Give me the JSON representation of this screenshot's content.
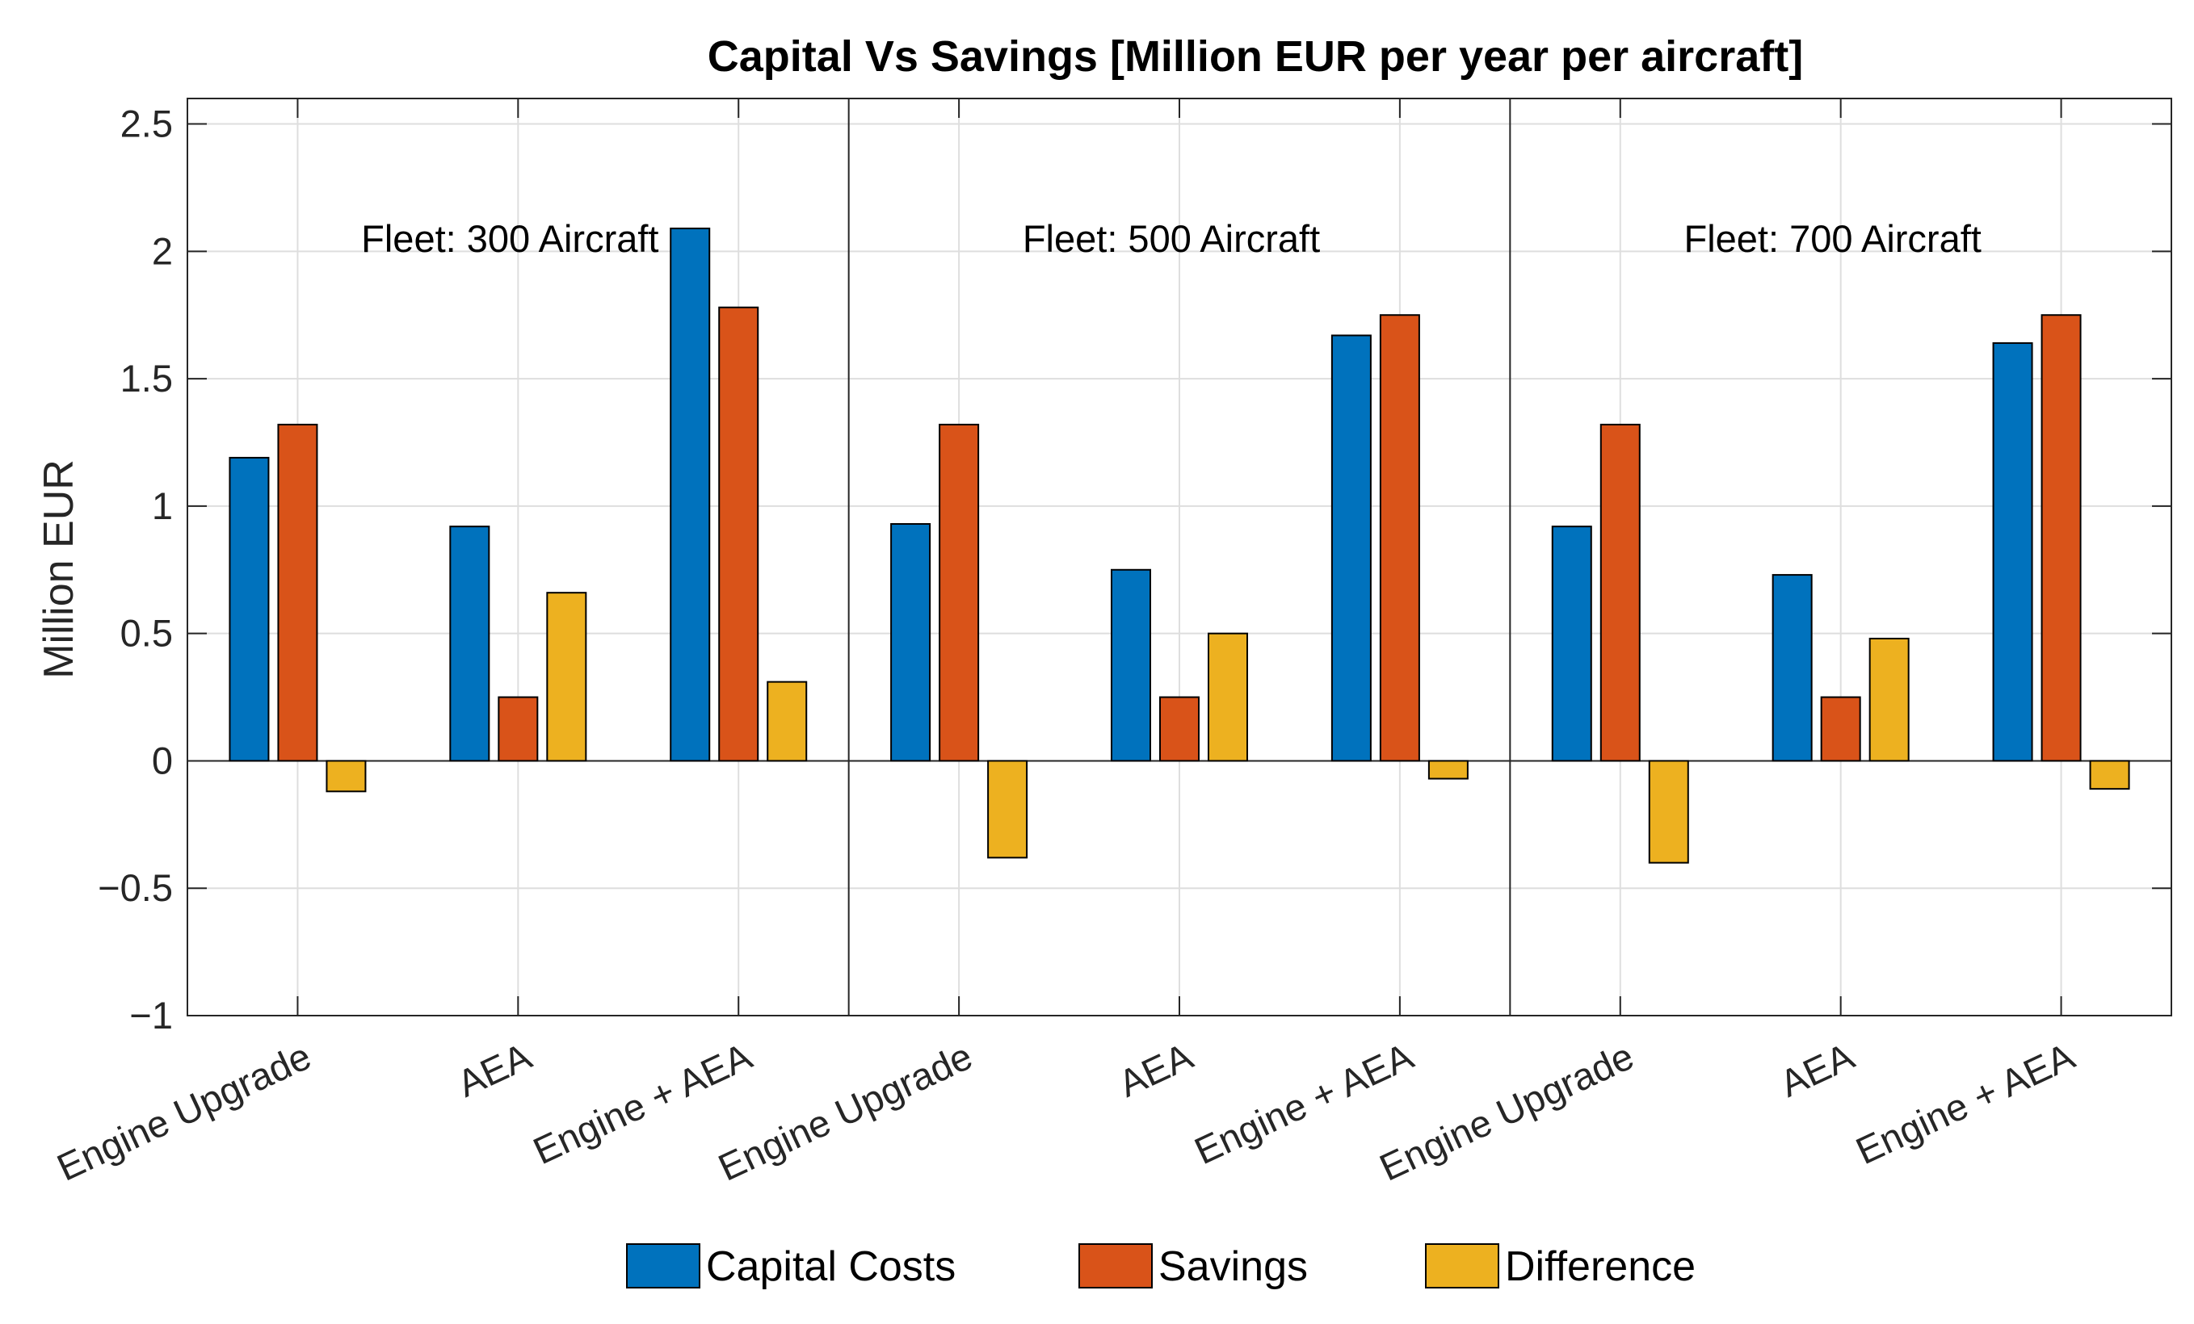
{
  "chart_data": {
    "type": "bar",
    "title": "Capital Vs Savings [Million EUR  per year per aircraft]",
    "ylabel": "Million EUR",
    "xlabel": "",
    "ylim": [
      -1,
      2.6
    ],
    "yticks": [
      2.5,
      2,
      1.5,
      1,
      0.5,
      0,
      -0.5,
      -1
    ],
    "ytick_labels": [
      "2.5",
      "2",
      "1.5",
      "1",
      "0.5",
      "0",
      "−0.5",
      "−1"
    ],
    "grid": true,
    "legend_position": "bottom",
    "categories": [
      "Engine Upgrade",
      "AEA",
      "Engine + AEA",
      "Engine Upgrade",
      "AEA",
      "Engine + AEA",
      "Engine Upgrade",
      "AEA",
      "Engine + AEA"
    ],
    "groups": [
      {
        "label": "Fleet: 300 Aircraft"
      },
      {
        "label": "Fleet: 500 Aircraft"
      },
      {
        "label": "Fleet: 700 Aircraft"
      }
    ],
    "series": [
      {
        "name": "Capital Costs",
        "color": "#0072BD",
        "values": [
          1.19,
          0.92,
          2.09,
          0.93,
          0.75,
          1.67,
          0.92,
          0.73,
          1.64
        ]
      },
      {
        "name": "Savings",
        "color": "#D95319",
        "values": [
          1.32,
          0.25,
          1.78,
          1.32,
          0.25,
          1.75,
          1.32,
          0.25,
          1.75
        ]
      },
      {
        "name": "Difference",
        "color": "#EDB120",
        "values": [
          -0.12,
          0.66,
          0.31,
          -0.38,
          0.5,
          -0.07,
          -0.4,
          0.48,
          -0.11
        ]
      }
    ]
  }
}
